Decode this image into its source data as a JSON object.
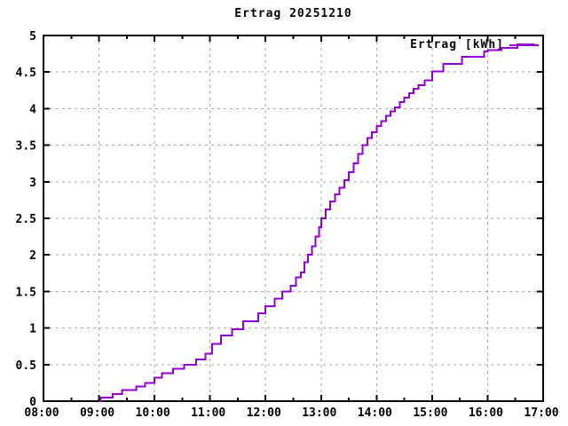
{
  "colors": {
    "line": "#9400d3",
    "grid": "#a9a9a9",
    "border": "#000000",
    "background": "#ffffff",
    "text": "#000000"
  },
  "chart_data": {
    "type": "line",
    "step": true,
    "title": "Ertrag 20251210",
    "xlabel": "",
    "ylabel": "",
    "xlim": [
      "08:00",
      "17:00"
    ],
    "ylim": [
      0,
      5
    ],
    "grid": true,
    "x_tick_labels": [
      "08:00",
      "09:00",
      "10:00",
      "11:00",
      "12:00",
      "13:00",
      "14:00",
      "15:00",
      "16:00",
      "17:00"
    ],
    "x_minor_ticks": [
      "08:30",
      "09:30",
      "10:30",
      "11:30",
      "12:30",
      "13:30",
      "14:30",
      "15:30",
      "16:30"
    ],
    "y_tick_labels": [
      "0",
      "0.5",
      "1",
      "1.5",
      "2",
      "2.5",
      "3",
      "3.5",
      "4",
      "4.5",
      "5"
    ],
    "legend": {
      "label": "Ertrag [kWh]",
      "position": "top-right-inside"
    },
    "series": [
      {
        "name": "Ertrag [kWh]",
        "color": "#9400d3",
        "points": [
          [
            "09:00",
            0.0
          ],
          [
            "09:02",
            0.05
          ],
          [
            "09:15",
            0.1
          ],
          [
            "09:25",
            0.15
          ],
          [
            "09:40",
            0.2
          ],
          [
            "09:50",
            0.25
          ],
          [
            "10:00",
            0.32
          ],
          [
            "10:08",
            0.38
          ],
          [
            "10:20",
            0.44
          ],
          [
            "10:32",
            0.5
          ],
          [
            "10:45",
            0.57
          ],
          [
            "10:55",
            0.65
          ],
          [
            "11:02",
            0.78
          ],
          [
            "11:12",
            0.9
          ],
          [
            "11:24",
            0.98
          ],
          [
            "11:36",
            1.09
          ],
          [
            "11:52",
            1.2
          ],
          [
            "12:00",
            1.3
          ],
          [
            "12:10",
            1.4
          ],
          [
            "12:18",
            1.5
          ],
          [
            "12:27",
            1.58
          ],
          [
            "12:33",
            1.69
          ],
          [
            "12:38",
            1.76
          ],
          [
            "12:42",
            1.9
          ],
          [
            "12:46",
            2.0
          ],
          [
            "12:50",
            2.12
          ],
          [
            "12:54",
            2.25
          ],
          [
            "12:58",
            2.38
          ],
          [
            "13:00",
            2.5
          ],
          [
            "13:05",
            2.62
          ],
          [
            "13:10",
            2.73
          ],
          [
            "13:15",
            2.83
          ],
          [
            "13:20",
            2.92
          ],
          [
            "13:25",
            3.02
          ],
          [
            "13:30",
            3.13
          ],
          [
            "13:35",
            3.25
          ],
          [
            "13:40",
            3.38
          ],
          [
            "13:45",
            3.5
          ],
          [
            "13:50",
            3.6
          ],
          [
            "13:55",
            3.68
          ],
          [
            "14:00",
            3.76
          ],
          [
            "14:05",
            3.83
          ],
          [
            "14:10",
            3.9
          ],
          [
            "14:15",
            3.96
          ],
          [
            "14:20",
            4.02
          ],
          [
            "14:25",
            4.09
          ],
          [
            "14:30",
            4.15
          ],
          [
            "14:35",
            4.21
          ],
          [
            "14:40",
            4.27
          ],
          [
            "14:45",
            4.32
          ],
          [
            "14:52",
            4.39
          ],
          [
            "15:00",
            4.51
          ],
          [
            "15:12",
            4.61
          ],
          [
            "15:32",
            4.71
          ],
          [
            "15:56",
            4.78
          ],
          [
            "16:00",
            4.8
          ],
          [
            "16:15",
            4.83
          ],
          [
            "16:32",
            4.88
          ],
          [
            "16:51",
            4.88
          ]
        ]
      }
    ]
  }
}
